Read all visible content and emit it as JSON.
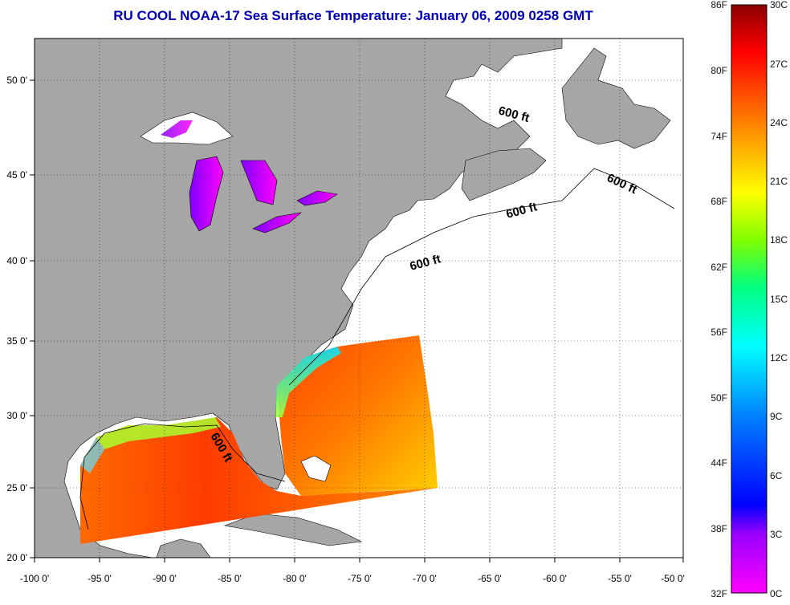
{
  "title": "RU COOL  NOAA-17  Sea Surface Temperature:  January 06, 2009 0258 GMT",
  "map": {
    "lon_labels": [
      "-100 0'",
      "-95 0'",
      "-90 0'",
      "-85 0'",
      "-80 0'",
      "-75 0'",
      "-70 0'",
      "-65 0'",
      "-60 0'",
      "-55 0'",
      "-50 0'"
    ],
    "lat_labels": [
      "50 0'",
      "45 0'",
      "40 0'",
      "35 0'",
      "30 0'",
      "25 0'",
      "20 0'"
    ],
    "isobath_label": "600 ft",
    "colors": {
      "land": "#a6a6a6",
      "water": "#ffffff",
      "grid": "#000000"
    }
  },
  "colorbar": {
    "f_labels": [
      "86F",
      "80F",
      "74F",
      "68F",
      "62F",
      "56F",
      "50F",
      "44F",
      "38F",
      "32F"
    ],
    "c_labels": [
      "30C",
      "27C",
      "24C",
      "21C",
      "18C",
      "15C",
      "12C",
      "9C",
      "6C",
      "3C",
      "0C"
    ],
    "range_c": [
      0,
      30
    ],
    "stops": [
      "#ff00ff",
      "#9a00ff",
      "#0000ff",
      "#0080ff",
      "#00ffff",
      "#00ff80",
      "#80ff00",
      "#ffff00",
      "#ff8000",
      "#ff0000",
      "#8b0000"
    ]
  }
}
